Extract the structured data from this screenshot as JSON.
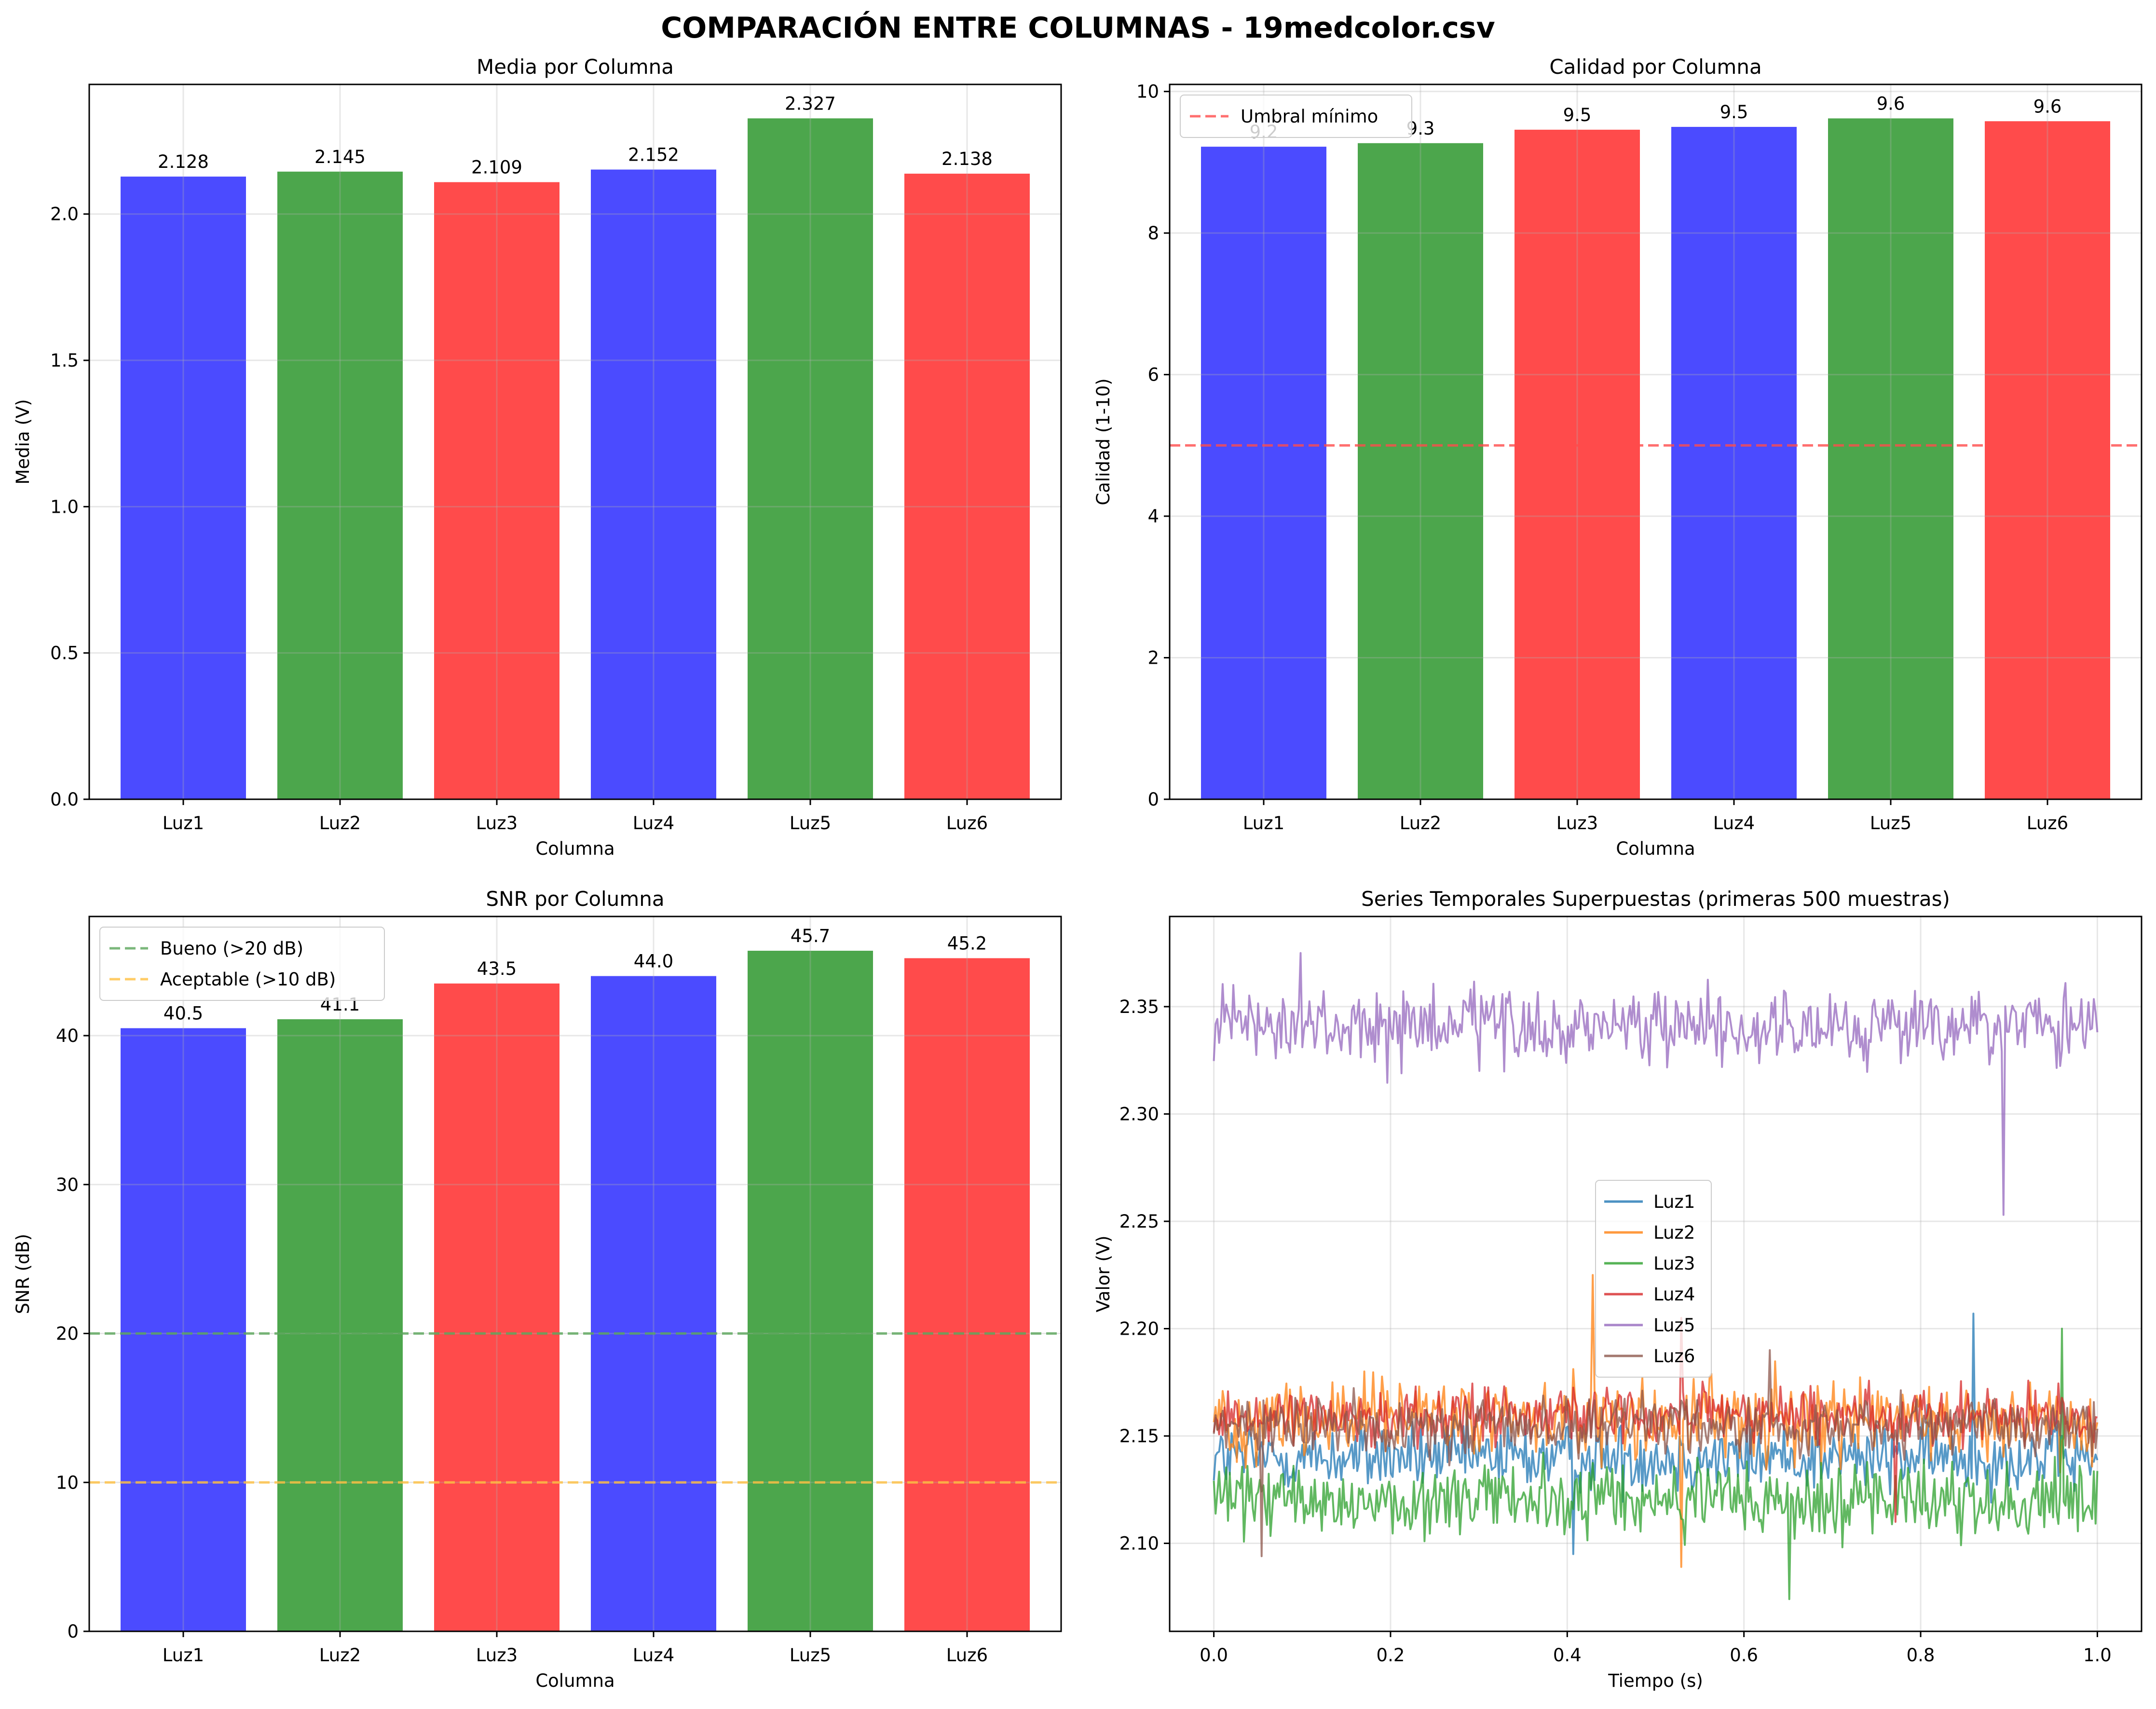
{
  "figure": {
    "title": "COMPARACIÓN ENTRE COLUMNAS - 19medcolor.csv"
  },
  "chart_data": [
    {
      "type": "bar",
      "title": "Media por Columna",
      "xlabel": "Columna",
      "ylabel": "Media (V)",
      "categories": [
        "Luz1",
        "Luz2",
        "Luz3",
        "Luz4",
        "Luz5",
        "Luz6"
      ],
      "values": [
        2.128,
        2.145,
        2.109,
        2.152,
        2.327,
        2.138
      ],
      "value_labels": [
        "2.128",
        "2.145",
        "2.109",
        "2.152",
        "2.327",
        "2.138"
      ],
      "bar_colors": [
        "#4b4bff",
        "#4ca64c",
        "#ff4b4b",
        "#4b4bff",
        "#4ca64c",
        "#ff4b4b"
      ],
      "ylim": [
        0,
        2.443
      ],
      "yticks": [
        0.0,
        0.5,
        1.0,
        1.5,
        2.0
      ],
      "ytick_labels": [
        "0.0",
        "0.5",
        "1.0",
        "1.5",
        "2.0"
      ],
      "grid": true,
      "reference_lines": [],
      "legend": null
    },
    {
      "type": "bar",
      "title": "Calidad por Columna",
      "xlabel": "Columna",
      "ylabel": "Calidad (1-10)",
      "categories": [
        "Luz1",
        "Luz2",
        "Luz3",
        "Luz4",
        "Luz5",
        "Luz6"
      ],
      "values": [
        9.22,
        9.27,
        9.46,
        9.5,
        9.62,
        9.58
      ],
      "value_labels": [
        "9.2",
        "9.3",
        "9.5",
        "9.5",
        "9.6",
        "9.6"
      ],
      "bar_colors": [
        "#4b4bff",
        "#4ca64c",
        "#ff4b4b",
        "#4b4bff",
        "#4ca64c",
        "#ff4b4b"
      ],
      "ylim": [
        0,
        10.1
      ],
      "yticks": [
        0,
        2,
        4,
        6,
        8,
        10
      ],
      "ytick_labels": [
        "0",
        "2",
        "4",
        "6",
        "8",
        "10"
      ],
      "grid": true,
      "reference_lines": [
        {
          "y": 5,
          "color": "#ff4b4b",
          "label": "Umbral mínimo"
        }
      ],
      "legend": "top-left"
    },
    {
      "type": "bar",
      "title": "SNR por Columna",
      "xlabel": "Columna",
      "ylabel": "SNR (dB)",
      "categories": [
        "Luz1",
        "Luz2",
        "Luz3",
        "Luz4",
        "Luz5",
        "Luz6"
      ],
      "values": [
        40.5,
        41.1,
        43.5,
        44.0,
        45.7,
        45.2
      ],
      "value_labels": [
        "40.5",
        "41.1",
        "43.5",
        "44.0",
        "45.7",
        "45.2"
      ],
      "bar_colors": [
        "#4b4bff",
        "#4ca64c",
        "#ff4b4b",
        "#4b4bff",
        "#4ca64c",
        "#ff4b4b"
      ],
      "ylim": [
        0,
        48
      ],
      "yticks": [
        0,
        10,
        20,
        30,
        40
      ],
      "ytick_labels": [
        "0",
        "10",
        "20",
        "30",
        "40"
      ],
      "grid": true,
      "reference_lines": [
        {
          "y": 20,
          "color": "#5aa55a",
          "label": "Bueno (>20 dB)"
        },
        {
          "y": 10,
          "color": "#ffbf40",
          "label": "Aceptable (>10 dB)"
        }
      ],
      "legend": "top-left"
    },
    {
      "type": "line",
      "title": "Series Temporales Superpuestas (primeras 500 muestras)",
      "xlabel": "Tiempo (s)",
      "ylabel": "Valor (V)",
      "xlim": [
        -0.05,
        1.05
      ],
      "ylim": [
        2.059,
        2.392
      ],
      "xticks": [
        0.0,
        0.2,
        0.4,
        0.6,
        0.8,
        1.0
      ],
      "xtick_labels": [
        "0.0",
        "0.2",
        "0.4",
        "0.6",
        "0.8",
        "1.0"
      ],
      "yticks": [
        2.1,
        2.15,
        2.2,
        2.25,
        2.3,
        2.35
      ],
      "ytick_labels": [
        "2.10",
        "2.15",
        "2.20",
        "2.25",
        "2.30",
        "2.35"
      ],
      "grid": true,
      "legend": "center",
      "samples": 500,
      "series": [
        {
          "name": "Luz1",
          "color": "#1f77b4",
          "mean": 2.14,
          "min": 2.095,
          "max": 2.207
        },
        {
          "name": "Luz2",
          "color": "#ff7f0e",
          "mean": 2.158,
          "min": 2.089,
          "max": 2.225
        },
        {
          "name": "Luz3",
          "color": "#2ca02c",
          "mean": 2.12,
          "min": 2.074,
          "max": 2.2
        },
        {
          "name": "Luz4",
          "color": "#d62728",
          "mean": 2.16,
          "min": 2.11,
          "max": 2.205
        },
        {
          "name": "Luz5",
          "color": "#9467bd",
          "mean": 2.34,
          "min": 2.253,
          "max": 2.375
        },
        {
          "name": "Luz6",
          "color": "#8c564b",
          "mean": 2.155,
          "min": 2.094,
          "max": 2.19
        }
      ]
    }
  ]
}
